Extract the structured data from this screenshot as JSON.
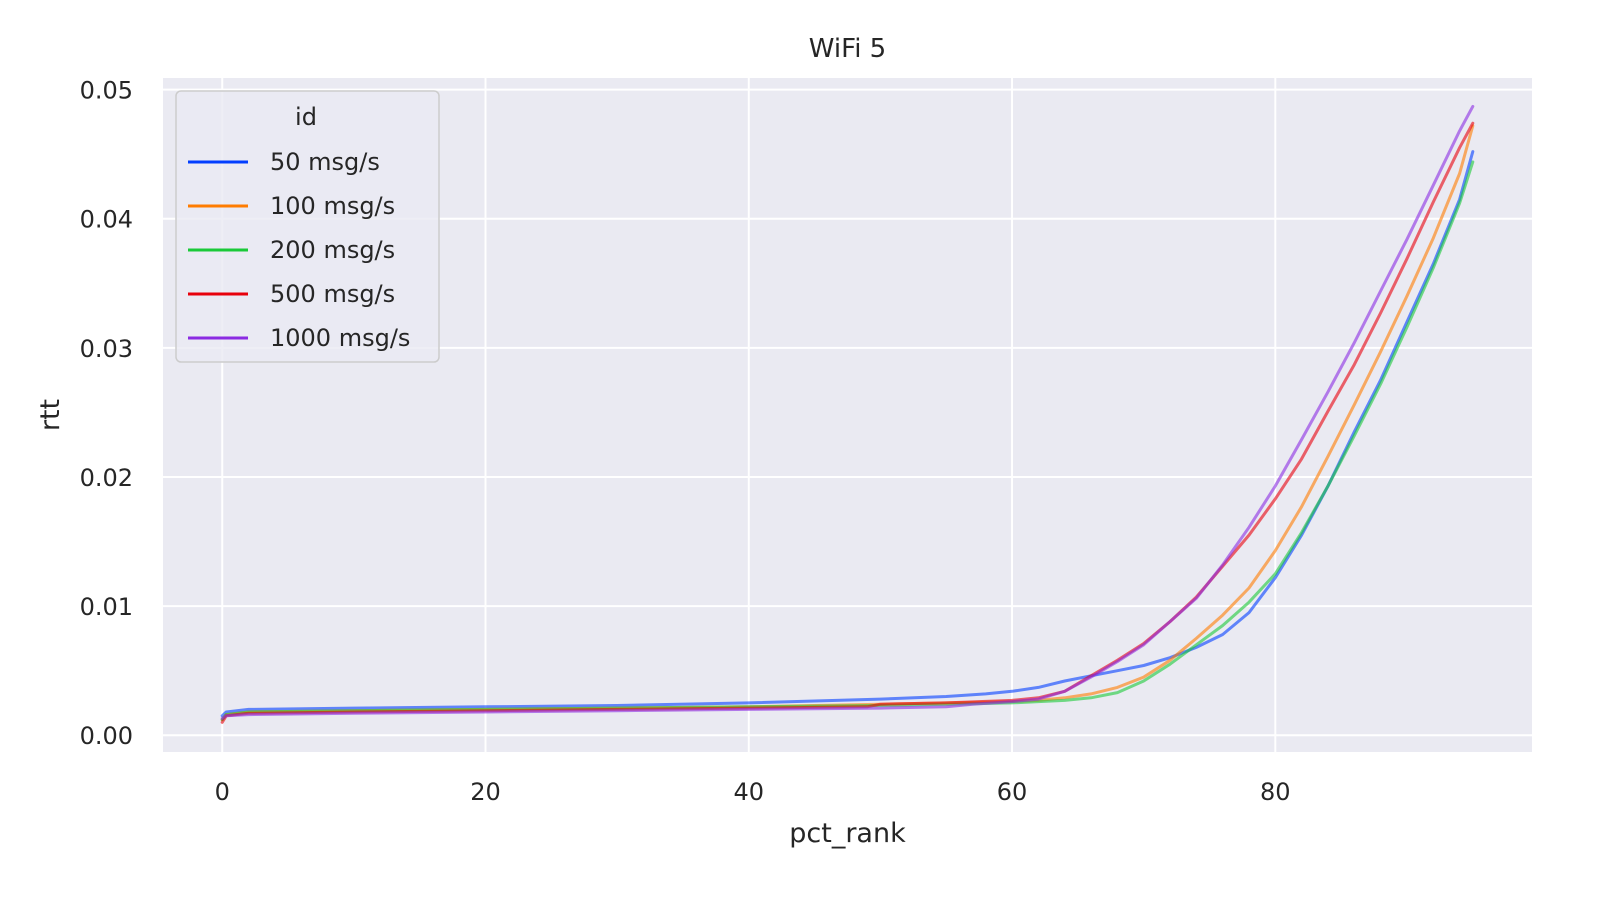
{
  "chart_data": {
    "type": "line",
    "title": "WiFi 5",
    "xlabel": "pct_rank",
    "ylabel": "rtt",
    "xlim": [
      -4.5,
      99.5
    ],
    "ylim": [
      -0.0013,
      0.0509
    ],
    "xticks": [
      0,
      20,
      40,
      60,
      80
    ],
    "xtick_labels": [
      "0",
      "20",
      "40",
      "60",
      "80"
    ],
    "yticks": [
      0.0,
      0.01,
      0.02,
      0.03,
      0.04,
      0.05
    ],
    "ytick_labels": [
      "0.00",
      "0.01",
      "0.02",
      "0.03",
      "0.04",
      "0.05"
    ],
    "grid": true,
    "legend": {
      "title": "id",
      "placement": "top-left"
    },
    "series": [
      {
        "name": "50 msg/s",
        "color": "#023eff",
        "x": [
          0,
          0.3,
          2,
          10,
          20,
          30,
          40,
          50,
          55,
          58,
          60,
          62,
          64,
          66,
          68,
          70,
          72,
          74,
          76,
          78,
          80,
          82,
          84,
          86,
          88,
          90,
          92,
          94,
          95
        ],
        "y": [
          0.0015,
          0.0018,
          0.002,
          0.0021,
          0.0022,
          0.0023,
          0.0025,
          0.0028,
          0.003,
          0.0032,
          0.0034,
          0.0037,
          0.0042,
          0.0046,
          0.005,
          0.0054,
          0.006,
          0.0068,
          0.0078,
          0.0095,
          0.0122,
          0.0155,
          0.0193,
          0.0235,
          0.0275,
          0.032,
          0.0365,
          0.0415,
          0.0452
        ]
      },
      {
        "name": "100 msg/s",
        "color": "#ff7c00",
        "x": [
          0,
          0.3,
          2,
          10,
          20,
          30,
          40,
          50,
          55,
          60,
          62,
          64,
          66,
          68,
          70,
          72,
          74,
          76,
          78,
          80,
          82,
          84,
          86,
          88,
          90,
          92,
          94,
          95
        ],
        "y": [
          0.0012,
          0.0016,
          0.0018,
          0.0019,
          0.002,
          0.0021,
          0.0022,
          0.0024,
          0.0025,
          0.0026,
          0.0027,
          0.0029,
          0.0032,
          0.0037,
          0.0045,
          0.0058,
          0.0075,
          0.0093,
          0.0114,
          0.0143,
          0.0177,
          0.0216,
          0.0256,
          0.0297,
          0.034,
          0.0385,
          0.0435,
          0.0472
        ]
      },
      {
        "name": "200 msg/s",
        "color": "#1ac938",
        "x": [
          0,
          0.3,
          2,
          10,
          20,
          30,
          40,
          50,
          55,
          60,
          62,
          64,
          66,
          68,
          70,
          72,
          74,
          76,
          78,
          80,
          82,
          84,
          86,
          88,
          90,
          92,
          94,
          95
        ],
        "y": [
          0.0012,
          0.0016,
          0.0018,
          0.0019,
          0.002,
          0.0021,
          0.0022,
          0.0023,
          0.0024,
          0.0025,
          0.0026,
          0.0027,
          0.0029,
          0.0033,
          0.0042,
          0.0055,
          0.007,
          0.0085,
          0.0103,
          0.0125,
          0.0157,
          0.0193,
          0.0232,
          0.0272,
          0.0316,
          0.0362,
          0.0412,
          0.0444
        ]
      },
      {
        "name": "500 msg/s",
        "color": "#e8000b",
        "x": [
          0,
          0.3,
          2,
          10,
          20,
          30,
          40,
          49,
          50,
          55,
          60,
          62,
          64,
          66,
          68,
          70,
          72,
          74,
          76,
          78,
          80,
          82,
          84,
          86,
          88,
          90,
          92,
          94,
          95
        ],
        "y": [
          0.001,
          0.0015,
          0.0017,
          0.0018,
          0.0019,
          0.002,
          0.0021,
          0.0022,
          0.0024,
          0.0025,
          0.0027,
          0.0029,
          0.0034,
          0.0046,
          0.0058,
          0.0071,
          0.0088,
          0.0107,
          0.0131,
          0.0155,
          0.0183,
          0.0214,
          0.0251,
          0.0287,
          0.0327,
          0.0369,
          0.0413,
          0.0455,
          0.0474
        ]
      },
      {
        "name": "1000 msg/s",
        "color": "#8b2be2",
        "x": [
          0,
          0.3,
          2,
          10,
          20,
          30,
          40,
          50,
          55,
          57,
          60,
          62,
          64,
          66,
          68,
          70,
          72,
          74,
          76,
          78,
          80,
          82,
          84,
          86,
          88,
          90,
          92,
          94,
          95
        ],
        "y": [
          0.0013,
          0.0015,
          0.0016,
          0.0017,
          0.0018,
          0.0019,
          0.002,
          0.0021,
          0.0022,
          0.0024,
          0.0026,
          0.0028,
          0.0034,
          0.0045,
          0.0057,
          0.007,
          0.0088,
          0.0106,
          0.0132,
          0.0161,
          0.0193,
          0.0229,
          0.0266,
          0.0304,
          0.0344,
          0.0384,
          0.0426,
          0.0468,
          0.0487
        ]
      }
    ]
  }
}
